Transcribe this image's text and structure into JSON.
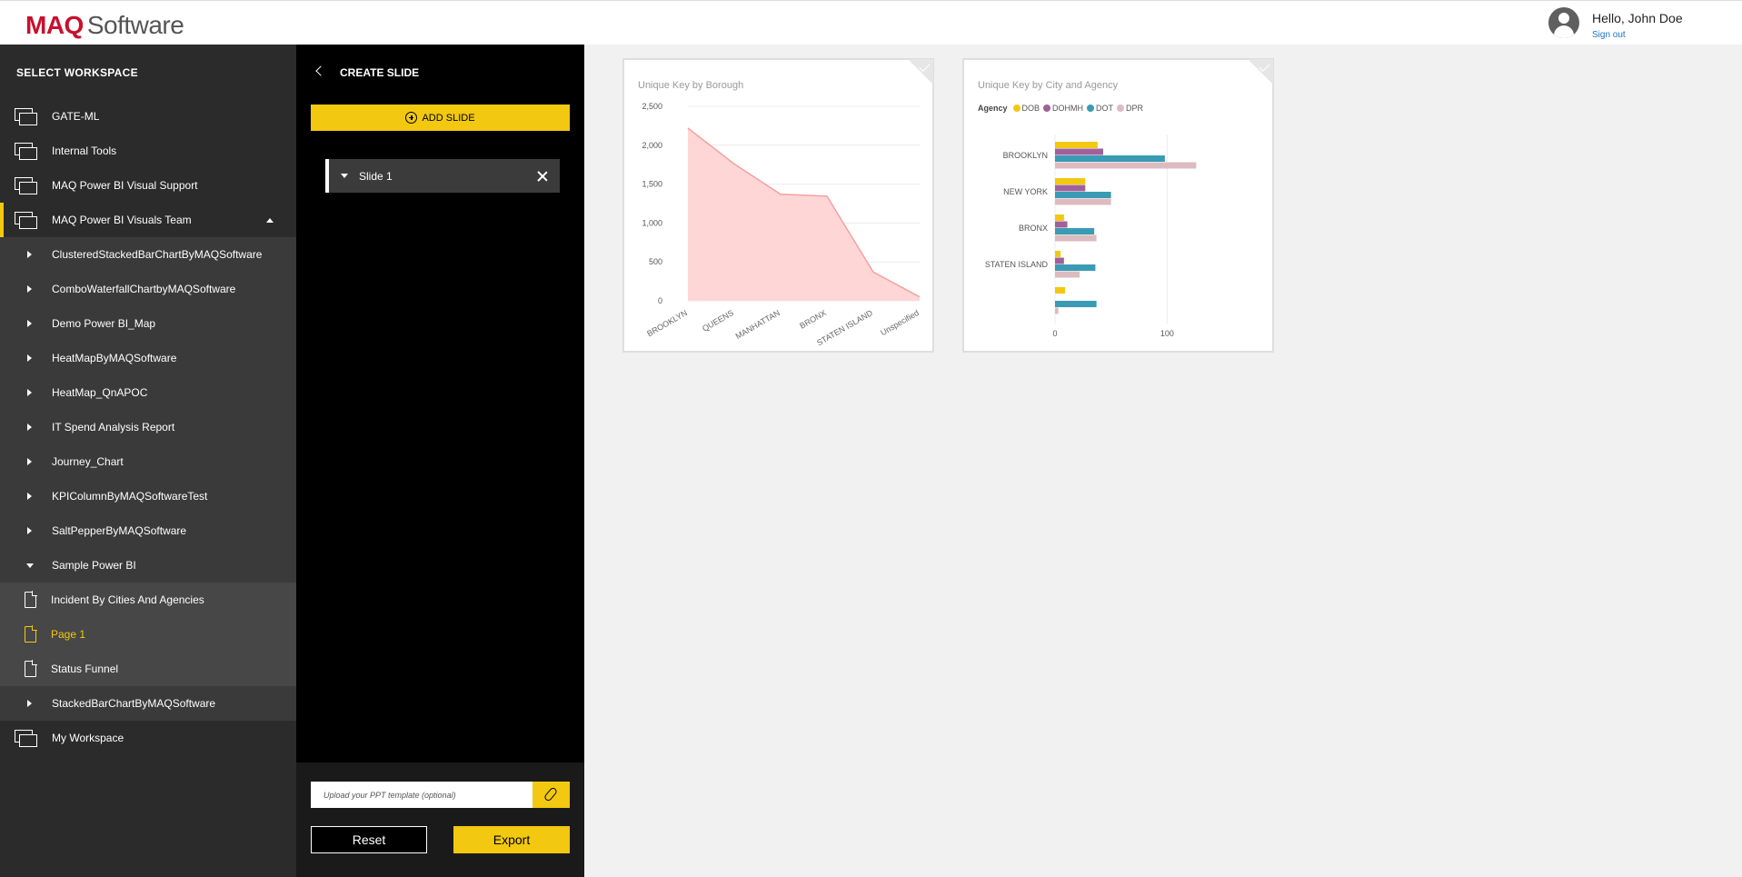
{
  "header": {
    "logo_brand": "MAQ",
    "logo_rest": "Software",
    "greeting": "Hello, John Doe",
    "signout": "Sign out"
  },
  "sidebar": {
    "title": "SELECT WORKSPACE",
    "items": [
      {
        "label": "GATE-ML",
        "kind": "workspace"
      },
      {
        "label": "Internal Tools",
        "kind": "workspace"
      },
      {
        "label": "MAQ Power BI Visual Support",
        "kind": "workspace"
      },
      {
        "label": "MAQ Power BI Visuals Team",
        "kind": "workspace",
        "expanded": true
      },
      {
        "label": "ClusteredStackedBarChartByMAQSoftware",
        "kind": "report"
      },
      {
        "label": "ComboWaterfallChartbyMAQSoftware",
        "kind": "report"
      },
      {
        "label": "Demo Power BI_Map",
        "kind": "report"
      },
      {
        "label": "HeatMapByMAQSoftware",
        "kind": "report"
      },
      {
        "label": "HeatMap_QnAPOC",
        "kind": "report"
      },
      {
        "label": "IT Spend Analysis Report",
        "kind": "report"
      },
      {
        "label": "Journey_Chart",
        "kind": "report"
      },
      {
        "label": "KPIColumnByMAQSoftwareTest",
        "kind": "report"
      },
      {
        "label": "SaltPepperByMAQSoftware",
        "kind": "report"
      },
      {
        "label": "Sample Power BI",
        "kind": "report",
        "expanded": true
      },
      {
        "label": "Incident By Cities And Agencies",
        "kind": "page"
      },
      {
        "label": "Page 1",
        "kind": "page",
        "active": true
      },
      {
        "label": "Status Funnel",
        "kind": "page"
      },
      {
        "label": "StackedBarChartByMAQSoftware",
        "kind": "report"
      },
      {
        "label": "My Workspace",
        "kind": "workspace"
      }
    ]
  },
  "panel": {
    "title": "CREATE SLIDE",
    "add_slide": "ADD SLIDE",
    "slides": [
      {
        "label": "Slide 1"
      }
    ],
    "upload_placeholder": "Upload your PPT template (optional)",
    "reset": "Reset",
    "export": "Export"
  },
  "colors": {
    "accent": "#f2c811",
    "area_fill": "#ffd6d6",
    "area_line": "#f4a0a0",
    "DOB": "#f2c811",
    "DOHMH": "#a0609c",
    "DOT": "#3a9bb4",
    "DPR": "#dcbcc0"
  },
  "chart_data": [
    {
      "type": "area",
      "title": "Unique Key by Borough",
      "categories": [
        "BROOKLYN",
        "QUEENS",
        "MANHATTAN",
        "BRONX",
        "STATEN ISLAND",
        "Unspecified"
      ],
      "values": [
        2220,
        1760,
        1370,
        1345,
        370,
        50
      ],
      "ylim": [
        0,
        2500
      ],
      "yticks": [
        "0",
        "500",
        "1,000",
        "1,500",
        "2,000",
        "2,500"
      ],
      "grid": true
    },
    {
      "type": "bar",
      "orientation": "horizontal",
      "title": "Unique Key by City and Agency",
      "legend_title": "Agency",
      "categories": [
        "BROOKLYN",
        "NEW YORK",
        "BRONX",
        "STATEN ISLAND",
        ""
      ],
      "series": [
        {
          "name": "DOB",
          "values": [
            38,
            27,
            8,
            5,
            9
          ]
        },
        {
          "name": "DOHMH",
          "values": [
            43,
            27,
            11,
            8,
            0
          ]
        },
        {
          "name": "DOT",
          "values": [
            98,
            50,
            35,
            36,
            37
          ]
        },
        {
          "name": "DPR",
          "values": [
            126,
            50,
            37,
            22,
            3
          ]
        }
      ],
      "xlim": [
        0,
        150
      ],
      "xticks": [
        "0",
        "100"
      ]
    }
  ]
}
